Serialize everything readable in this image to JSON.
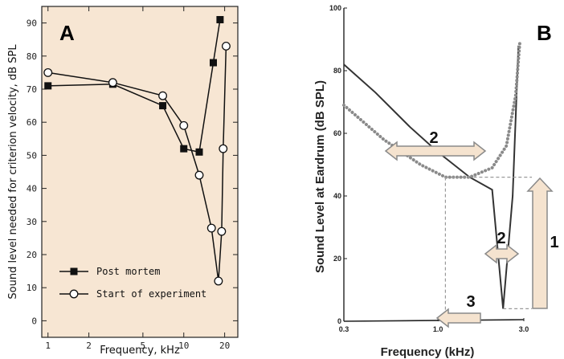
{
  "chart_data": [
    {
      "panel": "A",
      "type": "line",
      "xscale": "log",
      "xlabel": "Frequency, kHz",
      "ylabel": "Sound level needed for criterion velocity, dB SPL",
      "xticks": [
        1,
        2,
        5,
        10,
        20
      ],
      "yticks": [
        0,
        10,
        20,
        30,
        40,
        50,
        60,
        70,
        80,
        90
      ],
      "xlim": [
        0.9,
        25
      ],
      "ylim": [
        -5,
        95
      ],
      "background": "#f7e6d3",
      "legend_position": "bottom-left",
      "series": [
        {
          "name": "Post mortem",
          "marker": "filled-square",
          "x": [
            1,
            3,
            7,
            10,
            13,
            16.5,
            18.5
          ],
          "y": [
            71,
            71.5,
            65,
            52,
            51,
            78,
            91
          ]
        },
        {
          "name": "Start of experiment",
          "marker": "open-circle",
          "x": [
            1,
            3,
            7,
            10,
            13,
            16,
            18,
            19,
            19.5,
            20.5
          ],
          "y": [
            75,
            72,
            68,
            59,
            44,
            28,
            12,
            27,
            52,
            83
          ]
        }
      ]
    },
    {
      "panel": "B",
      "type": "line",
      "xscale": "log",
      "xlabel": "Frequency (kHz)",
      "ylabel": "Sound Level at Eardrum (dB SPL)",
      "xtick_labels": [
        "0.3",
        "1.0",
        "3.0"
      ],
      "xticks": [
        0.3,
        1.0,
        3.0
      ],
      "yticks": [
        0,
        20,
        40,
        60,
        80,
        100
      ],
      "xlim": [
        0.3,
        3.0
      ],
      "ylim": [
        0,
        100
      ],
      "series": [
        {
          "style": "solid",
          "x": [
            0.3,
            0.45,
            0.7,
            1.0,
            1.5,
            2.0,
            2.3,
            2.6,
            2.8
          ],
          "y": [
            82,
            73,
            62,
            54,
            46,
            42,
            4,
            40,
            88
          ]
        },
        {
          "style": "dotted",
          "x": [
            0.3,
            0.5,
            0.8,
            1.1,
            1.5,
            2.0,
            2.4,
            2.7,
            2.85
          ],
          "y": [
            69,
            58,
            50,
            46,
            46,
            49,
            56,
            72,
            89
          ]
        }
      ],
      "annotations": [
        "2",
        "2",
        "1",
        "3"
      ]
    }
  ]
}
